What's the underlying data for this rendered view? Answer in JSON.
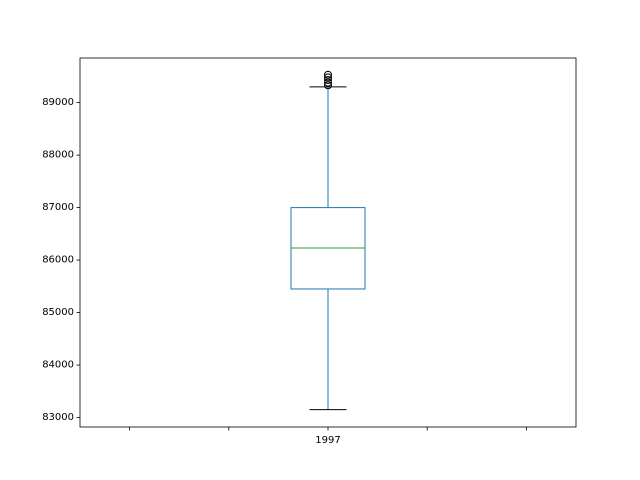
{
  "chart_data": {
    "type": "box",
    "categories": [
      "1997"
    ],
    "series": [
      {
        "category": "1997",
        "whisker_low": 83150,
        "q1": 85450,
        "median": 86230,
        "q3": 87000,
        "whisker_high": 89300,
        "outliers": [
          89330,
          89380,
          89430,
          89480,
          89530
        ]
      }
    ],
    "ylim": [
      82820,
      89850
    ],
    "yticks": [
      83000,
      84000,
      85000,
      86000,
      87000,
      88000,
      89000
    ],
    "ytick_labels": [
      "83000",
      "84000",
      "85000",
      "86000",
      "87000",
      "88000",
      "89000"
    ],
    "xtick_labels": [
      "",
      "",
      "1997",
      "",
      ""
    ],
    "xlabel": "",
    "ylabel": "",
    "title": "",
    "grid": false,
    "colors": {
      "box": "#1f77b4",
      "median": "#2ca02c",
      "whisker_cap": "#000000",
      "outlier": "#000000",
      "axes": "#000000"
    }
  }
}
